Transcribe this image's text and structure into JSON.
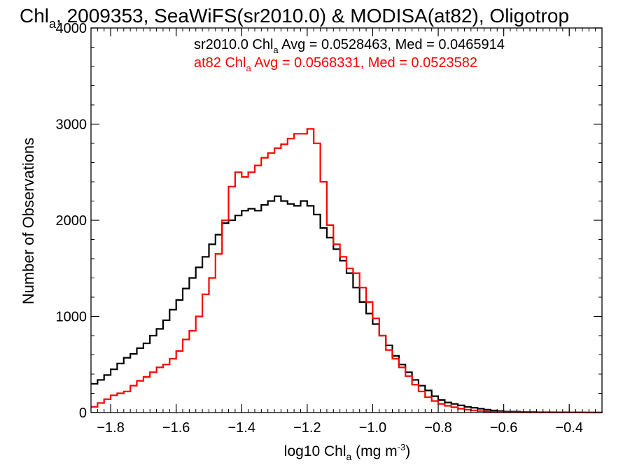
{
  "chart_data": {
    "type": "line",
    "title": {
      "prefix": "Chl",
      "sub": "a",
      "rest": ", 2009353, SeaWiFS(sr2010.0) & MODISA(at82), Oligotrop"
    },
    "xlabel": {
      "prefix": "log10 Chl",
      "sub": "a",
      "rest": " (mg m",
      "sup": "-3",
      "close": ")"
    },
    "ylabel": "Number of Observations",
    "xlim": [
      -1.86,
      -0.3
    ],
    "ylim": [
      0,
      4000
    ],
    "x_ticks": [
      -1.8,
      -1.6,
      -1.4,
      -1.2,
      -1.0,
      -0.8,
      -0.6,
      -0.4
    ],
    "x_tick_labels": [
      "−1.8",
      "−1.6",
      "−1.4",
      "−1.2",
      "−1.0",
      "−0.8",
      "−0.6",
      "−0.4"
    ],
    "y_ticks": [
      0,
      1000,
      2000,
      3000,
      4000
    ],
    "y_tick_labels": [
      "0",
      "1000",
      "2000",
      "3000",
      "4000"
    ],
    "annotations": [
      {
        "prefix": "sr2010.0 Chl",
        "sub": "a",
        "rest": " Avg = 0.0528463, Med = 0.0465914",
        "color": "#000000"
      },
      {
        "prefix": "at82 Chl",
        "sub": "a",
        "rest": " Avg = 0.0568331, Med = 0.0523582",
        "color": "#ff0000"
      }
    ],
    "series": [
      {
        "color": "#000000",
        "x": [
          -1.86,
          -1.84,
          -1.82,
          -1.8,
          -1.78,
          -1.76,
          -1.74,
          -1.72,
          -1.7,
          -1.68,
          -1.66,
          -1.64,
          -1.62,
          -1.6,
          -1.58,
          -1.56,
          -1.54,
          -1.52,
          -1.5,
          -1.48,
          -1.46,
          -1.44,
          -1.42,
          -1.4,
          -1.38,
          -1.36,
          -1.34,
          -1.32,
          -1.3,
          -1.28,
          -1.26,
          -1.24,
          -1.22,
          -1.2,
          -1.18,
          -1.16,
          -1.14,
          -1.12,
          -1.1,
          -1.08,
          -1.06,
          -1.04,
          -1.02,
          -1.0,
          -0.98,
          -0.96,
          -0.94,
          -0.92,
          -0.9,
          -0.88,
          -0.86,
          -0.84,
          -0.82,
          -0.8,
          -0.78,
          -0.76,
          -0.74,
          -0.72,
          -0.7,
          -0.68,
          -0.66,
          -0.64,
          -0.62,
          -0.6,
          -0.55,
          -0.5,
          -0.45,
          -0.4,
          -0.35,
          -0.3
        ],
        "y": [
          300,
          340,
          390,
          450,
          510,
          570,
          610,
          670,
          720,
          800,
          870,
          960,
          1070,
          1170,
          1290,
          1400,
          1510,
          1620,
          1750,
          1850,
          1970,
          2000,
          2050,
          2100,
          2120,
          2100,
          2160,
          2200,
          2250,
          2200,
          2170,
          2150,
          2200,
          2150,
          2060,
          1920,
          1820,
          1700,
          1580,
          1450,
          1300,
          1150,
          1030,
          920,
          800,
          700,
          590,
          500,
          420,
          340,
          280,
          230,
          170,
          130,
          105,
          90,
          75,
          60,
          50,
          40,
          30,
          22,
          15,
          10,
          6,
          4,
          3,
          2,
          1,
          0
        ]
      },
      {
        "color": "#ff0000",
        "x": [
          -1.86,
          -1.84,
          -1.82,
          -1.8,
          -1.78,
          -1.76,
          -1.74,
          -1.72,
          -1.7,
          -1.68,
          -1.66,
          -1.64,
          -1.62,
          -1.6,
          -1.58,
          -1.56,
          -1.54,
          -1.52,
          -1.5,
          -1.48,
          -1.46,
          -1.44,
          -1.42,
          -1.4,
          -1.38,
          -1.36,
          -1.34,
          -1.32,
          -1.3,
          -1.28,
          -1.26,
          -1.24,
          -1.22,
          -1.2,
          -1.18,
          -1.16,
          -1.14,
          -1.12,
          -1.1,
          -1.08,
          -1.06,
          -1.04,
          -1.02,
          -1.0,
          -0.98,
          -0.96,
          -0.94,
          -0.92,
          -0.9,
          -0.88,
          -0.86,
          -0.84,
          -0.82,
          -0.8,
          -0.78,
          -0.76,
          -0.74,
          -0.72,
          -0.7,
          -0.68,
          -0.66,
          -0.64,
          -0.62,
          -0.6,
          -0.55,
          -0.5,
          -0.45,
          -0.4,
          -0.35,
          -0.3
        ],
        "y": [
          60,
          100,
          140,
          180,
          200,
          220,
          280,
          330,
          370,
          420,
          470,
          500,
          560,
          640,
          760,
          850,
          1000,
          1230,
          1400,
          1650,
          2000,
          2350,
          2500,
          2450,
          2500,
          2570,
          2650,
          2700,
          2750,
          2790,
          2850,
          2900,
          2900,
          2950,
          2800,
          2400,
          1950,
          1750,
          1620,
          1500,
          1450,
          1300,
          1150,
          980,
          800,
          650,
          560,
          470,
          380,
          290,
          220,
          160,
          120,
          90,
          70,
          55,
          40,
          30,
          22,
          16,
          11,
          8,
          6,
          4,
          3,
          2,
          1,
          1,
          0,
          0
        ]
      }
    ]
  }
}
